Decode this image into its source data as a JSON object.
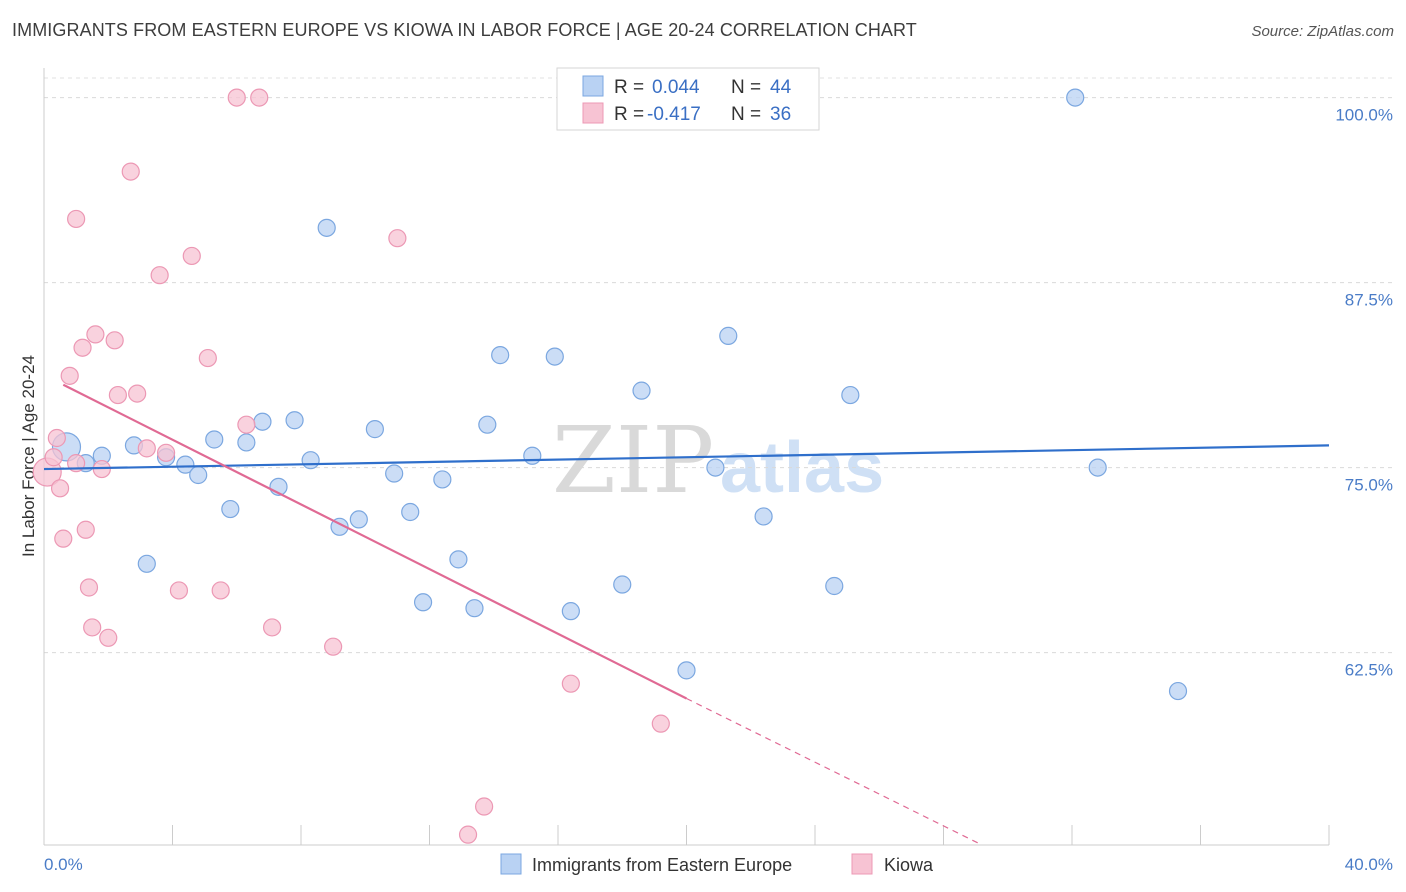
{
  "title": "IMMIGRANTS FROM EASTERN EUROPE VS KIOWA IN LABOR FORCE | AGE 20-24 CORRELATION CHART",
  "source": "Source: ZipAtlas.com",
  "watermark": {
    "zip": "ZIP",
    "atlas": "atlas"
  },
  "legend": {
    "r_label": "R =",
    "n_label": "N =",
    "series1": {
      "r": "0.044",
      "n": "44"
    },
    "series2": {
      "r": "-0.417",
      "n": "36"
    }
  },
  "colors": {
    "blue_fill": "#b9d2f3",
    "blue_stroke": "#7ba7e0",
    "blue_line": "#2f6fcb",
    "pink_fill": "#f7c3d3",
    "pink_stroke": "#ec98b4",
    "pink_line": "#e06a94"
  },
  "chart_data": {
    "type": "scatter",
    "title": "IMMIGRANTS FROM EASTERN EUROPE VS KIOWA IN LABOR FORCE | AGE 20-24 CORRELATION CHART",
    "xlabel": "",
    "ylabel": "In Labor Force | Age 20-24",
    "xlim": [
      0,
      40
    ],
    "ylim": [
      49.5,
      102
    ],
    "x_tick_labels": [
      "0.0%",
      "40.0%"
    ],
    "y_ticks": [
      100,
      87.5,
      75,
      62.5
    ],
    "y_tick_labels": [
      "100.0%",
      "87.5%",
      "75.0%",
      "62.5%"
    ],
    "series": [
      {
        "name": "Immigrants from Eastern Europe",
        "color": "#b9d2f3",
        "r": 0.044,
        "n": 44,
        "trend": {
          "x": [
            0,
            40
          ],
          "y": [
            74.9,
            76.5
          ]
        },
        "points": [
          {
            "x": 0.7,
            "y": 76.4,
            "big": true
          },
          {
            "x": 1.3,
            "y": 75.3
          },
          {
            "x": 1.8,
            "y": 75.8
          },
          {
            "x": 2.8,
            "y": 76.5
          },
          {
            "x": 3.2,
            "y": 68.5
          },
          {
            "x": 3.8,
            "y": 75.7
          },
          {
            "x": 4.4,
            "y": 75.2
          },
          {
            "x": 4.8,
            "y": 74.5
          },
          {
            "x": 5.3,
            "y": 76.9
          },
          {
            "x": 5.8,
            "y": 72.2
          },
          {
            "x": 6.3,
            "y": 76.7
          },
          {
            "x": 6.8,
            "y": 78.1
          },
          {
            "x": 7.3,
            "y": 73.7
          },
          {
            "x": 7.8,
            "y": 78.2
          },
          {
            "x": 8.3,
            "y": 75.5
          },
          {
            "x": 8.8,
            "y": 91.2
          },
          {
            "x": 9.2,
            "y": 71.0
          },
          {
            "x": 9.8,
            "y": 71.5
          },
          {
            "x": 10.3,
            "y": 77.6
          },
          {
            "x": 10.9,
            "y": 74.6
          },
          {
            "x": 11.4,
            "y": 72.0
          },
          {
            "x": 11.8,
            "y": 65.9
          },
          {
            "x": 12.4,
            "y": 74.2
          },
          {
            "x": 12.9,
            "y": 68.8
          },
          {
            "x": 13.4,
            "y": 65.5
          },
          {
            "x": 13.8,
            "y": 77.9
          },
          {
            "x": 14.2,
            "y": 82.6
          },
          {
            "x": 15.2,
            "y": 75.8
          },
          {
            "x": 15.9,
            "y": 82.5
          },
          {
            "x": 16.4,
            "y": 65.3
          },
          {
            "x": 18.0,
            "y": 67.1
          },
          {
            "x": 18.6,
            "y": 80.2
          },
          {
            "x": 20.0,
            "y": 61.3
          },
          {
            "x": 20.9,
            "y": 75.0
          },
          {
            "x": 21.3,
            "y": 83.9
          },
          {
            "x": 22.4,
            "y": 71.7
          },
          {
            "x": 24.6,
            "y": 67.0
          },
          {
            "x": 25.1,
            "y": 79.9
          },
          {
            "x": 32.1,
            "y": 100.0
          },
          {
            "x": 32.8,
            "y": 75.0
          },
          {
            "x": 35.3,
            "y": 59.9
          }
        ]
      },
      {
        "name": "Kiowa",
        "color": "#f7c3d3",
        "r": -0.417,
        "n": 36,
        "trend": {
          "x": [
            0.6,
            20.0
          ],
          "y": [
            80.6,
            59.4
          ]
        },
        "trend_dashed": {
          "x": [
            20.0,
            29.2
          ],
          "y": [
            59.4,
            49.5
          ]
        },
        "points": [
          {
            "x": 0.1,
            "y": 74.7,
            "big": true
          },
          {
            "x": 0.3,
            "y": 75.7
          },
          {
            "x": 0.4,
            "y": 77.0
          },
          {
            "x": 0.5,
            "y": 73.6
          },
          {
            "x": 0.6,
            "y": 70.2
          },
          {
            "x": 0.8,
            "y": 81.2
          },
          {
            "x": 1.0,
            "y": 75.3
          },
          {
            "x": 1.0,
            "y": 91.8
          },
          {
            "x": 1.2,
            "y": 83.1
          },
          {
            "x": 1.3,
            "y": 70.8
          },
          {
            "x": 1.4,
            "y": 66.9
          },
          {
            "x": 1.5,
            "y": 64.2
          },
          {
            "x": 1.6,
            "y": 84.0
          },
          {
            "x": 1.8,
            "y": 74.9
          },
          {
            "x": 2.0,
            "y": 63.5
          },
          {
            "x": 2.2,
            "y": 83.6
          },
          {
            "x": 2.3,
            "y": 79.9
          },
          {
            "x": 2.7,
            "y": 95.0
          },
          {
            "x": 2.9,
            "y": 80.0
          },
          {
            "x": 3.2,
            "y": 76.3
          },
          {
            "x": 3.6,
            "y": 88.0
          },
          {
            "x": 3.8,
            "y": 76.0
          },
          {
            "x": 4.2,
            "y": 66.7
          },
          {
            "x": 4.6,
            "y": 89.3
          },
          {
            "x": 5.1,
            "y": 82.4
          },
          {
            "x": 5.5,
            "y": 66.7
          },
          {
            "x": 6.0,
            "y": 100.0
          },
          {
            "x": 6.3,
            "y": 77.9
          },
          {
            "x": 6.7,
            "y": 100.0
          },
          {
            "x": 7.1,
            "y": 64.2
          },
          {
            "x": 9.0,
            "y": 62.9
          },
          {
            "x": 11.0,
            "y": 90.5
          },
          {
            "x": 13.2,
            "y": 50.2
          },
          {
            "x": 13.7,
            "y": 52.1
          },
          {
            "x": 16.4,
            "y": 60.4
          },
          {
            "x": 19.2,
            "y": 57.7
          }
        ]
      }
    ]
  }
}
